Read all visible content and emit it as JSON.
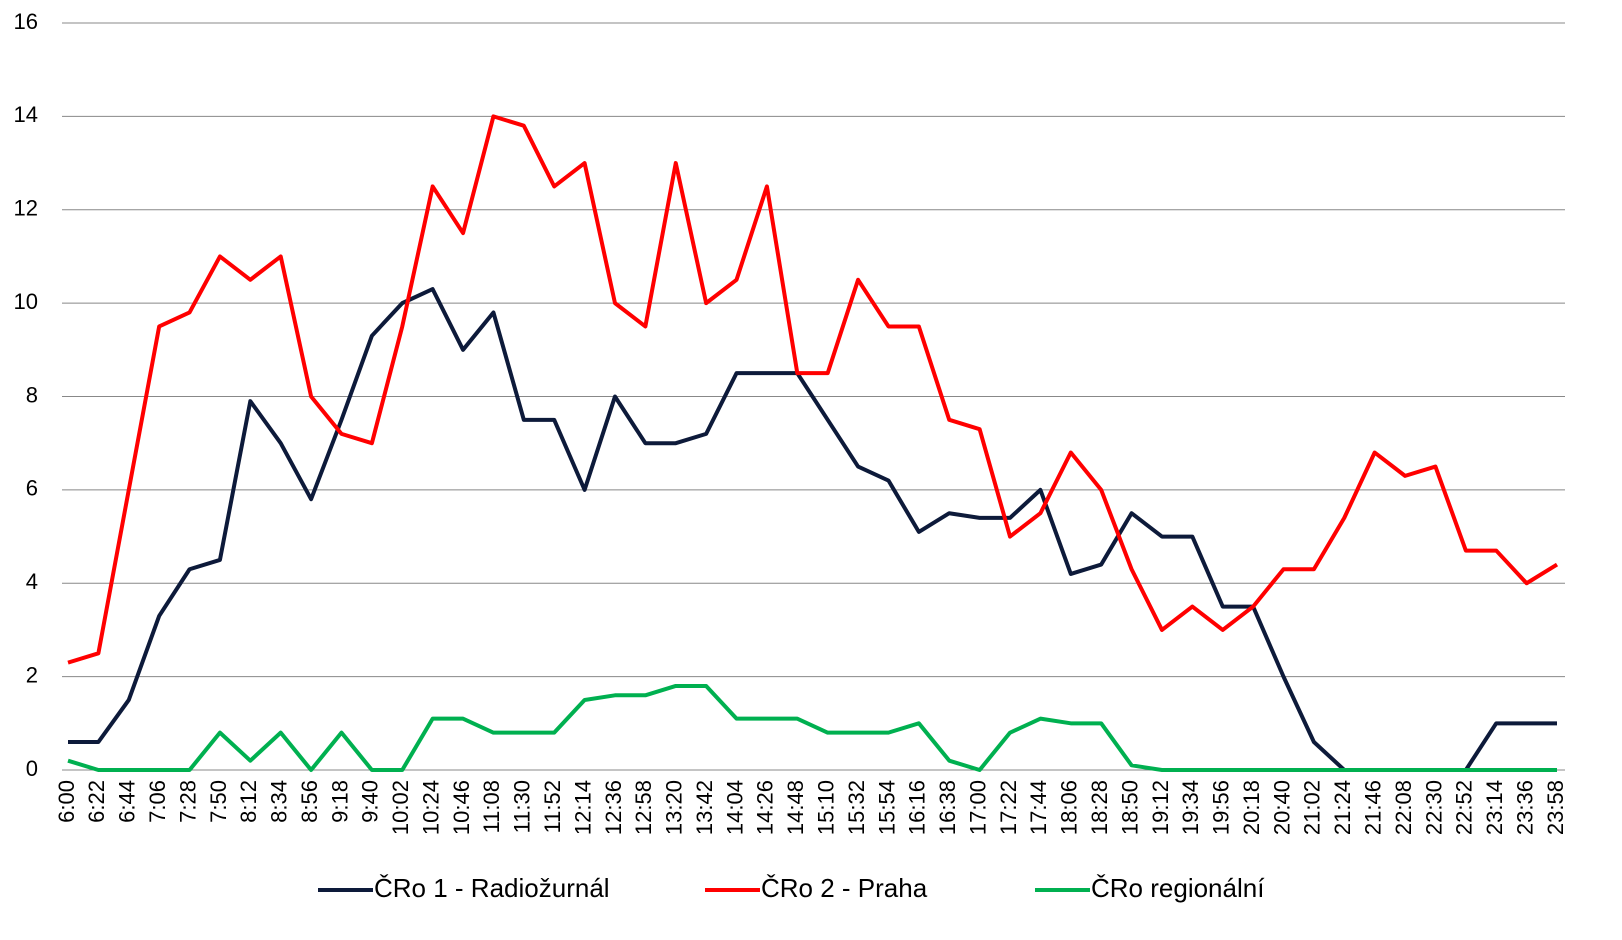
{
  "chart_data": {
    "type": "line",
    "categories": [
      "6:00",
      "6:22",
      "6:44",
      "7:06",
      "7:28",
      "7:50",
      "8:12",
      "8:34",
      "8:56",
      "9:18",
      "9:40",
      "10:02",
      "10:24",
      "10:46",
      "11:08",
      "11:30",
      "11:52",
      "12:14",
      "12:36",
      "12:58",
      "13:20",
      "13:42",
      "14:04",
      "14:26",
      "14:48",
      "15:10",
      "15:32",
      "15:54",
      "16:16",
      "16:38",
      "17:00",
      "17:22",
      "17:44",
      "18:06",
      "18:28",
      "18:50",
      "19:12",
      "19:34",
      "19:56",
      "20:18",
      "20:40",
      "21:02",
      "21:24",
      "21:46",
      "22:08",
      "22:30",
      "22:52",
      "23:14",
      "23:36",
      "23:58"
    ],
    "series": [
      {
        "name": "ČRo 1 - Radiožurnál",
        "color": "#0d1a3a",
        "values": [
          0.6,
          0.6,
          1.5,
          3.3,
          4.3,
          4.5,
          7.9,
          7.0,
          5.8,
          7.5,
          9.3,
          10.0,
          10.3,
          9.0,
          9.8,
          7.5,
          7.5,
          6.0,
          8.0,
          7.0,
          7.0,
          7.2,
          8.5,
          8.5,
          8.5,
          7.5,
          6.5,
          6.2,
          5.1,
          5.5,
          5.4,
          5.4,
          6.0,
          4.2,
          4.4,
          5.5,
          5.0,
          5.0,
          3.5,
          3.5,
          2.0,
          0.6,
          0,
          0,
          0,
          0,
          0,
          1.0,
          1.0,
          1.0
        ]
      },
      {
        "name": "ČRo 2 - Praha",
        "color": "#ff0000",
        "values": [
          2.3,
          2.5,
          6.0,
          9.5,
          9.8,
          11.0,
          10.5,
          11.0,
          8.0,
          7.2,
          7.0,
          9.5,
          12.5,
          11.5,
          14.0,
          13.8,
          12.5,
          13.0,
          10.0,
          9.5,
          13.0,
          10.0,
          10.5,
          12.5,
          8.5,
          8.5,
          10.5,
          9.5,
          9.5,
          7.5,
          7.3,
          5.0,
          5.5,
          6.8,
          6.0,
          4.3,
          3.0,
          3.5,
          3.0,
          3.5,
          4.3,
          4.3,
          5.4,
          6.8,
          6.3,
          6.5,
          4.7,
          4.7,
          4.0,
          4.4
        ]
      },
      {
        "name": "ČRo regionální",
        "color": "#00b050",
        "values": [
          0.2,
          0,
          0,
          0,
          0,
          0.8,
          0.2,
          0.8,
          0,
          0.8,
          0,
          0,
          1.1,
          1.1,
          0.8,
          0.8,
          0.8,
          1.5,
          1.6,
          1.6,
          1.8,
          1.8,
          1.1,
          1.1,
          1.1,
          0.8,
          0.8,
          0.8,
          1.0,
          0.2,
          0,
          0.8,
          1.1,
          1.0,
          1.0,
          0.1,
          0,
          0,
          0,
          0,
          0,
          0,
          0,
          0,
          0,
          0,
          0,
          0,
          0,
          0
        ]
      }
    ],
    "ylim": [
      0,
      16
    ],
    "yticks": [
      0,
      2,
      4,
      6,
      8,
      10,
      12,
      14,
      16
    ],
    "grid": true,
    "legend": "bottom"
  }
}
